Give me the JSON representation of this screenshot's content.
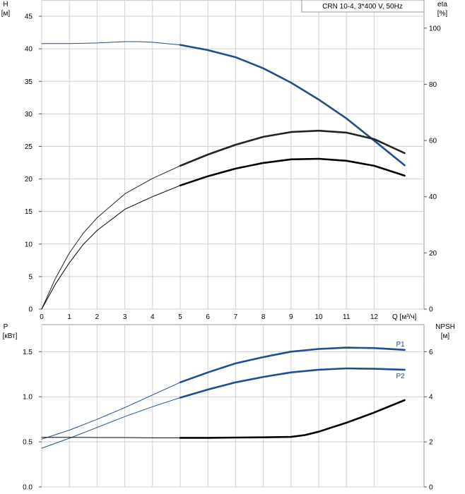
{
  "legend": "CRN 10-4, 3*400 V, 50Hz",
  "chart_data": [
    {
      "type": "line",
      "panel": "upper",
      "left_axis": {
        "label": "H",
        "unit": "[м]",
        "ylim": [
          0,
          47.5
        ],
        "ticks": [
          "0",
          "5",
          "10",
          "15",
          "20",
          "25",
          "30",
          "35",
          "40",
          "45"
        ]
      },
      "right_axis": {
        "label": "eta",
        "unit": "[%]",
        "ylim": [
          0,
          110
        ],
        "ticks": [
          "0",
          "20",
          "40",
          "60",
          "80",
          "100"
        ]
      },
      "x_axis": {
        "label": "Q [м³/ч]",
        "xlim": [
          0,
          13.8
        ],
        "ticks": [
          "0",
          "1",
          "2",
          "3",
          "4",
          "5",
          "6",
          "7",
          "8",
          "9",
          "10",
          "11",
          "12"
        ]
      },
      "grid": true,
      "series": [
        {
          "axis": "left",
          "color": "#1f4e8c",
          "split_at": 5,
          "x": [
            0,
            1,
            2,
            3,
            3.5,
            4,
            5,
            6,
            7,
            8,
            9,
            10,
            11,
            12,
            13.1
          ],
          "y": [
            40.8,
            40.8,
            40.9,
            41.1,
            41.1,
            41.0,
            40.6,
            39.8,
            38.7,
            37.0,
            34.8,
            32.2,
            29.3,
            25.9,
            22.1
          ]
        },
        {
          "axis": "right",
          "color": "#222222",
          "split_at": 5,
          "x": [
            0,
            0.5,
            1,
            1.5,
            2,
            3,
            4,
            5,
            6,
            7,
            8,
            9,
            10,
            11,
            12,
            13.1
          ],
          "y": [
            0,
            11,
            20,
            27,
            32.5,
            41,
            46.5,
            51,
            55,
            58.5,
            61.3,
            63,
            63.5,
            62.8,
            60.5,
            55.5
          ]
        },
        {
          "axis": "right",
          "color": "#000000",
          "split_at": 5,
          "x": [
            0,
            0.5,
            1,
            1.5,
            2,
            3,
            4,
            5,
            6,
            7,
            8,
            9,
            10,
            11,
            12,
            13.1
          ],
          "y": [
            0,
            9,
            16.5,
            23,
            28,
            35.5,
            40,
            44,
            47.3,
            50,
            52,
            53.3,
            53.5,
            52.8,
            51,
            47.5
          ]
        }
      ]
    },
    {
      "type": "line",
      "panel": "lower",
      "left_axis": {
        "label": "P",
        "unit": "[кВт]",
        "ylim": [
          0,
          1.8
        ],
        "ticks": [
          "0.0",
          "0.5",
          "1.0",
          "1.5"
        ]
      },
      "right_axis": {
        "label": "NPSH",
        "unit": "[м]",
        "ylim": [
          0,
          7.2
        ],
        "ticks": [
          "0",
          "2",
          "4",
          "6"
        ]
      },
      "x_axis": {
        "xlim": [
          0,
          13.8
        ]
      },
      "grid": true,
      "series": [
        {
          "name": "P1",
          "axis": "left",
          "color": "#1f4e8c",
          "split_at": 5,
          "x": [
            0,
            1,
            2,
            3,
            4,
            5,
            6,
            7,
            8,
            9,
            10,
            11,
            12,
            13.1
          ],
          "y": [
            0.53,
            0.63,
            0.75,
            0.88,
            1.02,
            1.16,
            1.27,
            1.37,
            1.44,
            1.5,
            1.53,
            1.545,
            1.54,
            1.52
          ]
        },
        {
          "name": "P2",
          "axis": "left",
          "color": "#1f4e8c",
          "split_at": 5,
          "x": [
            0,
            1,
            2,
            3,
            4,
            5,
            6,
            7,
            8,
            9,
            10,
            11,
            12,
            13.1
          ],
          "y": [
            0.43,
            0.54,
            0.66,
            0.78,
            0.89,
            0.99,
            1.08,
            1.16,
            1.22,
            1.27,
            1.3,
            1.315,
            1.31,
            1.3
          ]
        },
        {
          "axis": "right",
          "color": "#000000",
          "split_at": 5,
          "x": [
            0,
            1,
            2,
            3,
            4,
            5,
            6,
            7,
            8,
            9,
            9.5,
            10,
            11,
            12,
            13.1
          ],
          "y": [
            2.2,
            2.2,
            2.19,
            2.19,
            2.18,
            2.18,
            2.18,
            2.19,
            2.2,
            2.22,
            2.3,
            2.45,
            2.85,
            3.3,
            3.85
          ]
        }
      ]
    }
  ]
}
